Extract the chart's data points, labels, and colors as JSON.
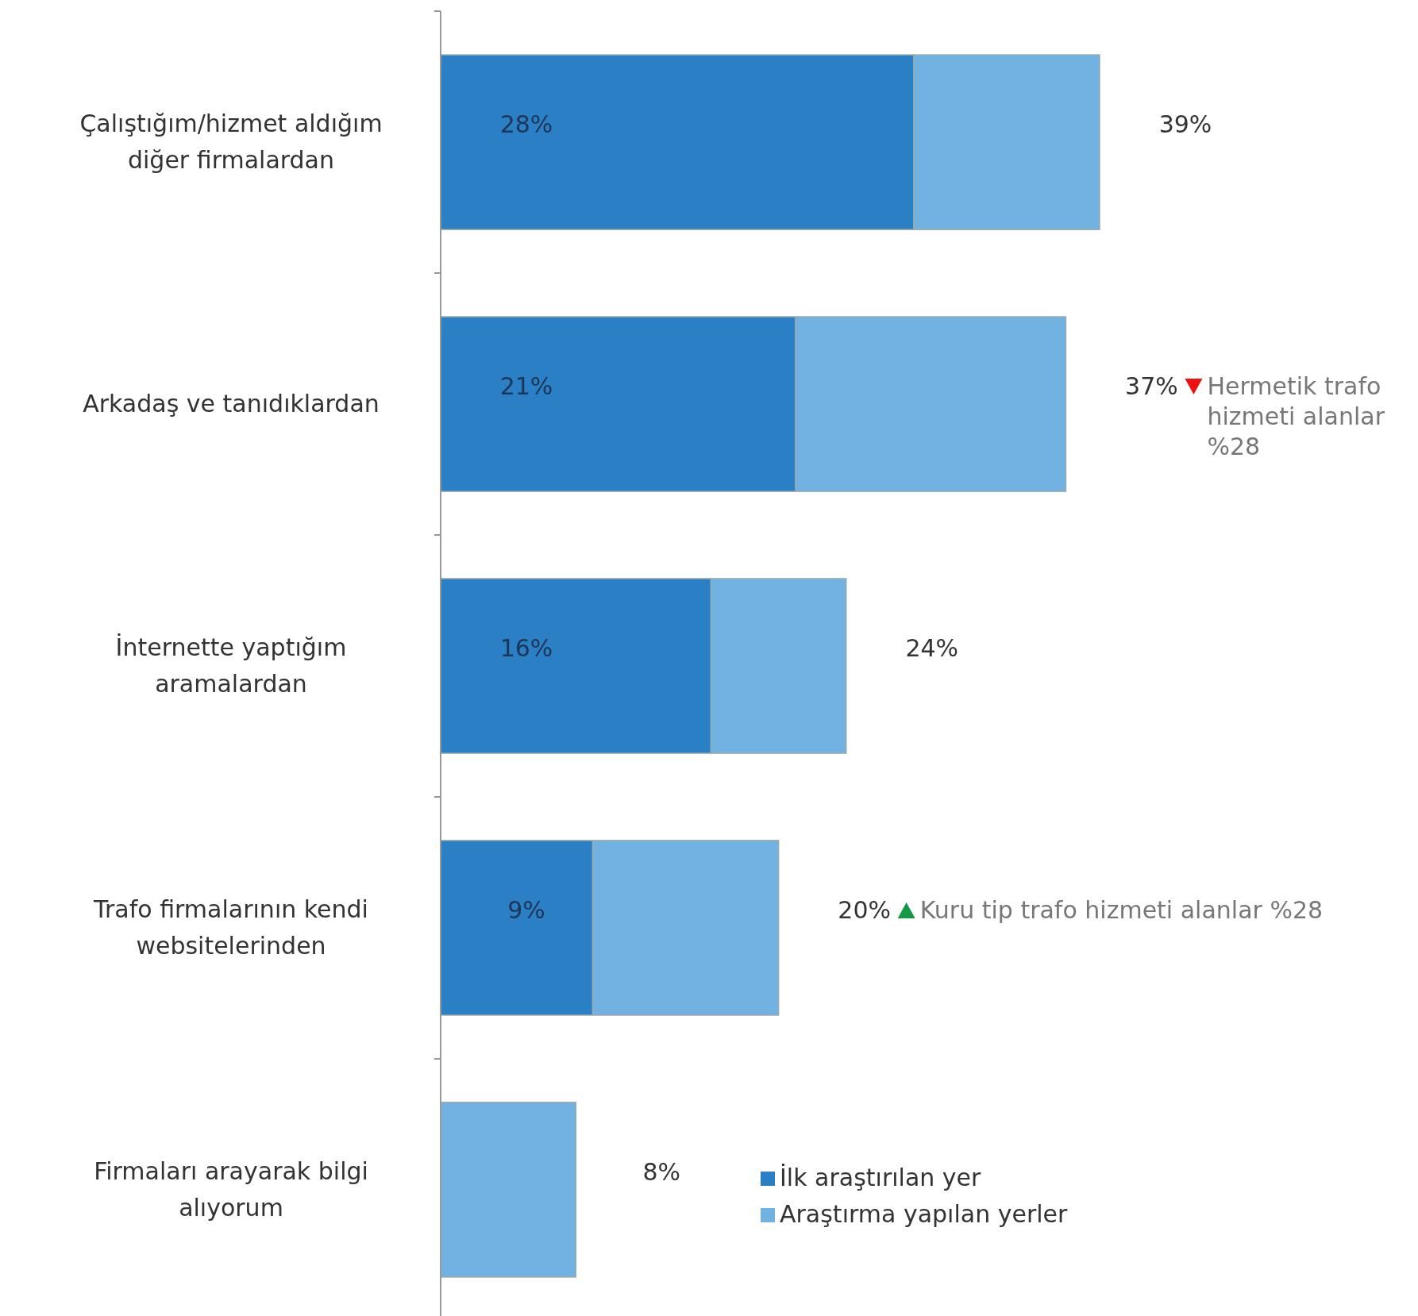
{
  "chart_data": {
    "type": "bar",
    "orientation": "horizontal",
    "stacked": true,
    "categories": [
      "Çalıştığım/hizmet aldığım diğer firmalardan",
      "Arkadaş ve tanıdıklardan",
      "İnternette yaptığım aramalardan",
      "Trafo firmalarının kendi websitelerinden",
      "Firmaları arayarak bilgi alıyorum"
    ],
    "series": [
      {
        "name": "İlk araştırılan yer",
        "color": "#2a7fc5",
        "values": [
          28,
          21,
          16,
          9,
          null
        ],
        "value_labels": [
          "28%",
          "21%",
          "16%",
          "9%",
          null
        ]
      },
      {
        "name": "Araştırma yapılan yerler",
        "color": "#72b2e2",
        "values": [
          11,
          16,
          8,
          11,
          8
        ]
      }
    ],
    "totals": [
      "39%",
      "37%",
      "24%",
      "20%",
      "8%"
    ],
    "annotations": [
      "Hermetik trafo hizmeti alanlar %28",
      "Kuru tip trafo hizmeti alanlar %28"
    ],
    "legend": "bottom right"
  }
}
